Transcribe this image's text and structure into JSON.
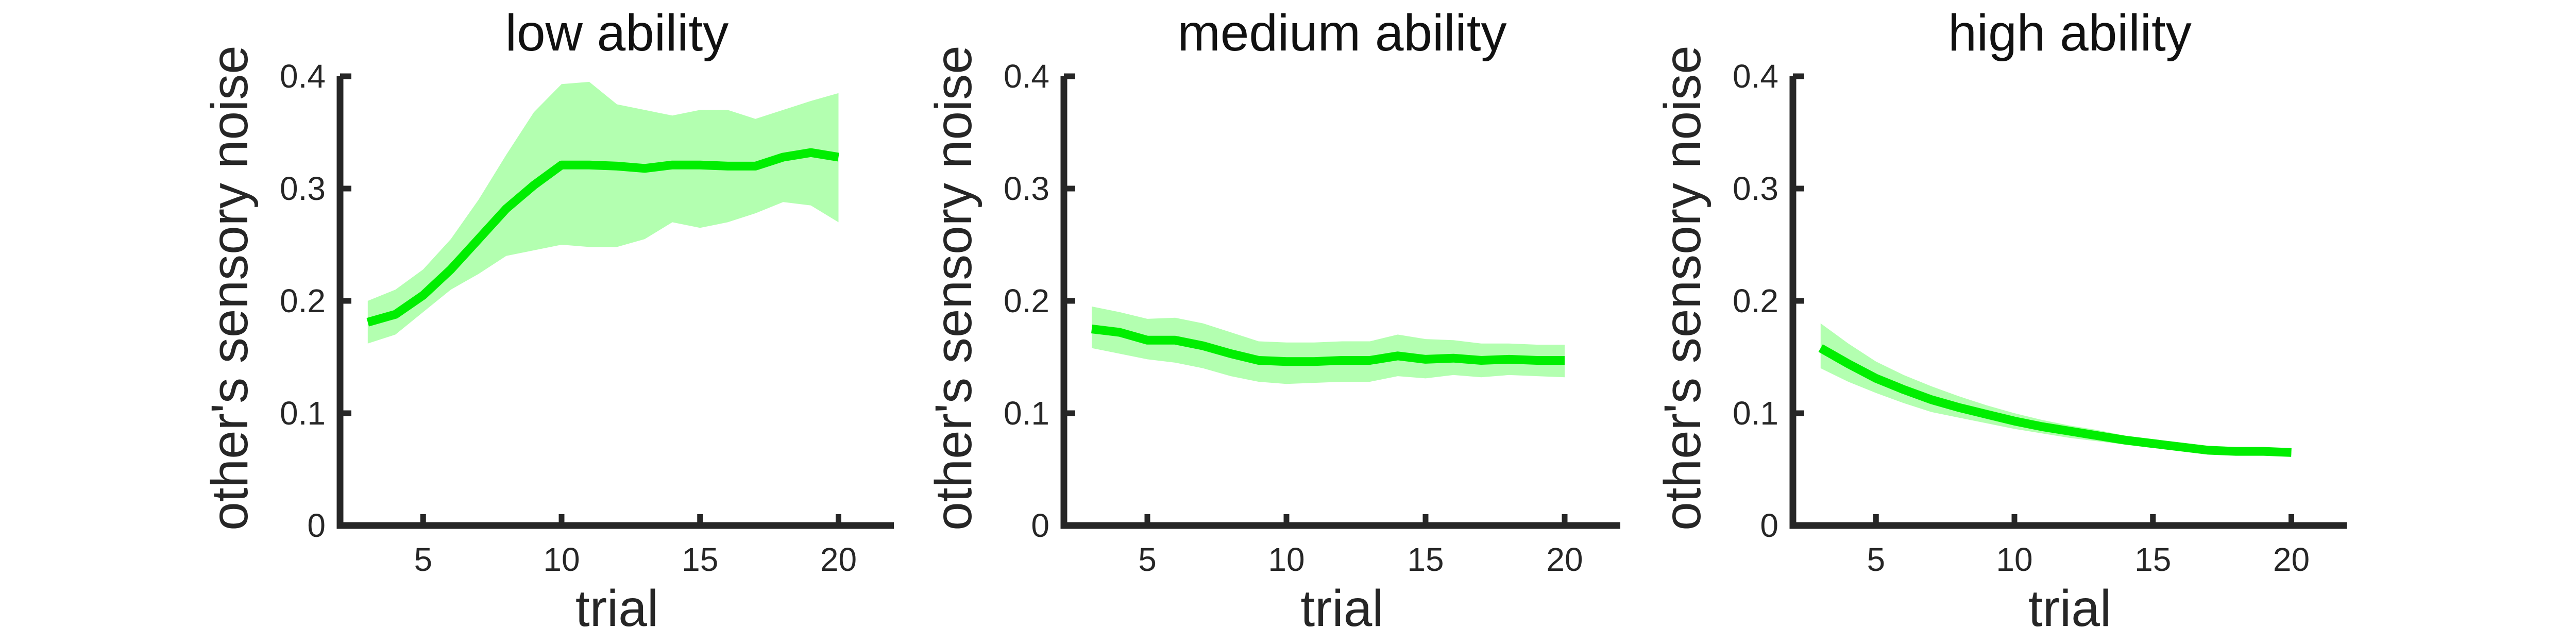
{
  "colors": {
    "line": "#00ee00",
    "band": "#b3ffb0",
    "axis": "#262626"
  },
  "chart_data": [
    {
      "type": "line",
      "title": "low ability",
      "xlabel": "trial",
      "ylabel": "other's sensory noise",
      "xlim": [
        2,
        22
      ],
      "ylim": [
        0,
        0.4
      ],
      "xticks": [
        5,
        10,
        15,
        20
      ],
      "yticks": [
        0,
        0.1,
        0.2,
        0.3,
        0.4
      ],
      "xtick_labels": [
        "5",
        "10",
        "15",
        "20"
      ],
      "ytick_labels": [
        "0",
        "0.1",
        "0.2",
        "0.3",
        "0.4"
      ],
      "grid": false,
      "x": [
        3,
        4,
        5,
        6,
        7,
        8,
        9,
        10,
        11,
        12,
        13,
        14,
        15,
        16,
        17,
        18,
        19,
        20
      ],
      "series": [
        {
          "values": [
            0.181,
            0.188,
            0.205,
            0.228,
            0.255,
            0.282,
            0.303,
            0.321,
            0.321,
            0.32,
            0.318,
            0.321,
            0.321,
            0.32,
            0.32,
            0.328,
            0.332,
            0.328
          ],
          "lower": [
            0.162,
            0.17,
            0.19,
            0.21,
            0.224,
            0.24,
            0.245,
            0.25,
            0.248,
            0.248,
            0.255,
            0.27,
            0.265,
            0.27,
            0.278,
            0.288,
            0.285,
            0.27
          ],
          "upper": [
            0.2,
            0.21,
            0.228,
            0.255,
            0.29,
            0.33,
            0.368,
            0.393,
            0.395,
            0.375,
            0.37,
            0.365,
            0.37,
            0.37,
            0.362,
            0.37,
            0.378,
            0.385
          ]
        }
      ]
    },
    {
      "type": "line",
      "title": "medium ability",
      "xlabel": "trial",
      "ylabel": "other's sensory noise",
      "xlim": [
        2,
        22
      ],
      "ylim": [
        0,
        0.4
      ],
      "xticks": [
        5,
        10,
        15,
        20
      ],
      "yticks": [
        0,
        0.1,
        0.2,
        0.3,
        0.4
      ],
      "xtick_labels": [
        "5",
        "10",
        "15",
        "20"
      ],
      "ytick_labels": [
        "0",
        "0.1",
        "0.2",
        "0.3",
        "0.4"
      ],
      "grid": false,
      "x": [
        3,
        4,
        5,
        6,
        7,
        8,
        9,
        10,
        11,
        12,
        13,
        14,
        15,
        16,
        17,
        18,
        19,
        20
      ],
      "series": [
        {
          "values": [
            0.175,
            0.172,
            0.165,
            0.165,
            0.16,
            0.153,
            0.147,
            0.146,
            0.146,
            0.147,
            0.147,
            0.151,
            0.148,
            0.149,
            0.147,
            0.148,
            0.147,
            0.147
          ],
          "lower": [
            0.158,
            0.153,
            0.148,
            0.145,
            0.14,
            0.133,
            0.128,
            0.126,
            0.127,
            0.128,
            0.128,
            0.133,
            0.131,
            0.134,
            0.132,
            0.134,
            0.133,
            0.132
          ],
          "upper": [
            0.195,
            0.19,
            0.184,
            0.185,
            0.18,
            0.172,
            0.164,
            0.163,
            0.163,
            0.164,
            0.164,
            0.17,
            0.166,
            0.165,
            0.162,
            0.162,
            0.161,
            0.161
          ]
        }
      ]
    },
    {
      "type": "line",
      "title": "high ability",
      "xlabel": "trial",
      "ylabel": "other's sensory noise",
      "xlim": [
        2,
        22
      ],
      "ylim": [
        0,
        0.4
      ],
      "xticks": [
        5,
        10,
        15,
        20
      ],
      "yticks": [
        0,
        0.1,
        0.2,
        0.3,
        0.4
      ],
      "xtick_labels": [
        "5",
        "10",
        "15",
        "20"
      ],
      "ytick_labels": [
        "0",
        "0.1",
        "0.2",
        "0.3",
        "0.4"
      ],
      "grid": false,
      "x": [
        3,
        4,
        5,
        6,
        7,
        8,
        9,
        10,
        11,
        12,
        13,
        14,
        15,
        16,
        17,
        18,
        19,
        20
      ],
      "series": [
        {
          "values": [
            0.158,
            0.144,
            0.131,
            0.121,
            0.112,
            0.105,
            0.099,
            0.093,
            0.088,
            0.084,
            0.08,
            0.076,
            0.073,
            0.07,
            0.067,
            0.066,
            0.066,
            0.065
          ],
          "lower": [
            0.14,
            0.128,
            0.118,
            0.109,
            0.101,
            0.096,
            0.091,
            0.086,
            0.082,
            0.078,
            0.075,
            0.072,
            0.069,
            0.067,
            0.065,
            0.064,
            0.064,
            0.063
          ],
          "upper": [
            0.18,
            0.162,
            0.146,
            0.134,
            0.124,
            0.115,
            0.107,
            0.1,
            0.094,
            0.089,
            0.085,
            0.08,
            0.077,
            0.073,
            0.07,
            0.068,
            0.068,
            0.067
          ]
        }
      ]
    }
  ]
}
